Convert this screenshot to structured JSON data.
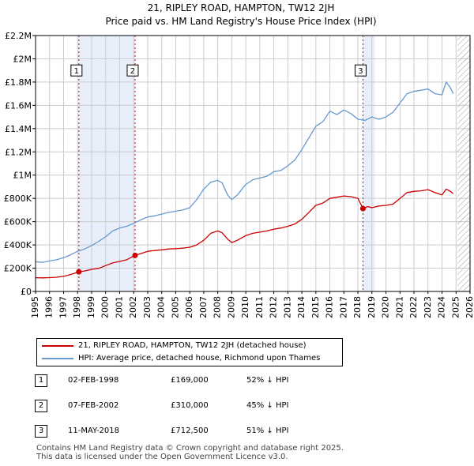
{
  "chart_data": {
    "type": "line",
    "title": "21, RIPLEY ROAD, HAMPTON, TW12 2JH",
    "subtitle": "Price paid vs. HM Land Registry's House Price Index (HPI)",
    "xlabel": "",
    "ylabel": "",
    "xlim": [
      1995,
      2026
    ],
    "ylim": [
      0,
      2200000
    ],
    "grid": true,
    "x_ticks": [
      1995,
      1996,
      1997,
      1998,
      1999,
      2000,
      2001,
      2002,
      2003,
      2004,
      2005,
      2006,
      2007,
      2008,
      2009,
      2010,
      2011,
      2012,
      2013,
      2014,
      2015,
      2016,
      2017,
      2018,
      2019,
      2020,
      2021,
      2022,
      2023,
      2024,
      2025,
      2026
    ],
    "y_ticks": [
      {
        "value": 0,
        "label": "£0"
      },
      {
        "value": 200000,
        "label": "£200K"
      },
      {
        "value": 400000,
        "label": "£400K"
      },
      {
        "value": 600000,
        "label": "£600K"
      },
      {
        "value": 800000,
        "label": "£800K"
      },
      {
        "value": 1000000,
        "label": "£1M"
      },
      {
        "value": 1200000,
        "label": "£1.2M"
      },
      {
        "value": 1400000,
        "label": "£1.4M"
      },
      {
        "value": 1600000,
        "label": "£1.6M"
      },
      {
        "value": 1800000,
        "label": "£1.8M"
      },
      {
        "value": 2000000,
        "label": "£2M"
      },
      {
        "value": 2200000,
        "label": "£2.2M"
      }
    ],
    "shaded_ranges": [
      [
        1998.09,
        2002.1
      ],
      [
        2018.36,
        2019.2
      ]
    ],
    "future_hatch_from": 2025.1,
    "series": [
      {
        "name": "21, RIPLEY ROAD, HAMPTON, TW12 2JH (detached house)",
        "color": "#cc0000",
        "points": [
          [
            1995.0,
            118000
          ],
          [
            1995.5,
            117000
          ],
          [
            1996.0,
            119000
          ],
          [
            1996.5,
            122000
          ],
          [
            1997.0,
            130000
          ],
          [
            1997.5,
            145000
          ],
          [
            1998.09,
            169000
          ],
          [
            1998.5,
            176000
          ],
          [
            1999.0,
            190000
          ],
          [
            1999.5,
            198000
          ],
          [
            2000.0,
            222000
          ],
          [
            2000.5,
            245000
          ],
          [
            2001.0,
            258000
          ],
          [
            2001.5,
            272000
          ],
          [
            2002.1,
            310000
          ],
          [
            2002.5,
            325000
          ],
          [
            2003.0,
            345000
          ],
          [
            2003.5,
            352000
          ],
          [
            2004.0,
            358000
          ],
          [
            2004.5,
            365000
          ],
          [
            2005.0,
            368000
          ],
          [
            2005.5,
            372000
          ],
          [
            2006.0,
            380000
          ],
          [
            2006.5,
            400000
          ],
          [
            2007.0,
            440000
          ],
          [
            2007.5,
            500000
          ],
          [
            2008.0,
            520000
          ],
          [
            2008.3,
            505000
          ],
          [
            2008.7,
            450000
          ],
          [
            2009.0,
            420000
          ],
          [
            2009.4,
            440000
          ],
          [
            2010.0,
            480000
          ],
          [
            2010.5,
            500000
          ],
          [
            2011.0,
            510000
          ],
          [
            2011.5,
            520000
          ],
          [
            2012.0,
            535000
          ],
          [
            2012.5,
            545000
          ],
          [
            2013.0,
            560000
          ],
          [
            2013.5,
            580000
          ],
          [
            2014.0,
            620000
          ],
          [
            2014.5,
            680000
          ],
          [
            2015.0,
            740000
          ],
          [
            2015.5,
            760000
          ],
          [
            2016.0,
            800000
          ],
          [
            2016.5,
            810000
          ],
          [
            2017.0,
            820000
          ],
          [
            2017.5,
            815000
          ],
          [
            2018.0,
            800000
          ],
          [
            2018.36,
            712500
          ],
          [
            2018.7,
            730000
          ],
          [
            2019.0,
            720000
          ],
          [
            2019.5,
            735000
          ],
          [
            2020.0,
            740000
          ],
          [
            2020.5,
            750000
          ],
          [
            2021.0,
            800000
          ],
          [
            2021.5,
            850000
          ],
          [
            2022.0,
            860000
          ],
          [
            2022.5,
            865000
          ],
          [
            2023.0,
            875000
          ],
          [
            2023.5,
            850000
          ],
          [
            2024.0,
            830000
          ],
          [
            2024.3,
            880000
          ],
          [
            2024.6,
            860000
          ],
          [
            2024.8,
            840000
          ]
        ]
      },
      {
        "name": "HPI: Average price, detached house, Richmond upon Thames",
        "color": "#6699cc",
        "points": [
          [
            1995.0,
            255000
          ],
          [
            1995.5,
            250000
          ],
          [
            1996.0,
            262000
          ],
          [
            1996.5,
            272000
          ],
          [
            1997.0,
            290000
          ],
          [
            1997.5,
            315000
          ],
          [
            1998.0,
            345000
          ],
          [
            1998.5,
            365000
          ],
          [
            1999.0,
            395000
          ],
          [
            1999.5,
            430000
          ],
          [
            2000.0,
            470000
          ],
          [
            2000.5,
            520000
          ],
          [
            2001.0,
            545000
          ],
          [
            2001.5,
            560000
          ],
          [
            2002.0,
            585000
          ],
          [
            2002.5,
            615000
          ],
          [
            2003.0,
            640000
          ],
          [
            2003.5,
            650000
          ],
          [
            2004.0,
            665000
          ],
          [
            2004.5,
            680000
          ],
          [
            2005.0,
            690000
          ],
          [
            2005.5,
            700000
          ],
          [
            2006.0,
            720000
          ],
          [
            2006.5,
            790000
          ],
          [
            2007.0,
            880000
          ],
          [
            2007.5,
            940000
          ],
          [
            2008.0,
            955000
          ],
          [
            2008.3,
            935000
          ],
          [
            2008.7,
            830000
          ],
          [
            2009.0,
            790000
          ],
          [
            2009.4,
            830000
          ],
          [
            2010.0,
            920000
          ],
          [
            2010.5,
            960000
          ],
          [
            2011.0,
            975000
          ],
          [
            2011.5,
            990000
          ],
          [
            2012.0,
            1030000
          ],
          [
            2012.5,
            1040000
          ],
          [
            2013.0,
            1080000
          ],
          [
            2013.5,
            1130000
          ],
          [
            2014.0,
            1220000
          ],
          [
            2014.5,
            1320000
          ],
          [
            2015.0,
            1420000
          ],
          [
            2015.5,
            1460000
          ],
          [
            2016.0,
            1550000
          ],
          [
            2016.5,
            1520000
          ],
          [
            2017.0,
            1560000
          ],
          [
            2017.5,
            1530000
          ],
          [
            2018.0,
            1480000
          ],
          [
            2018.5,
            1470000
          ],
          [
            2019.0,
            1500000
          ],
          [
            2019.5,
            1480000
          ],
          [
            2020.0,
            1500000
          ],
          [
            2020.5,
            1540000
          ],
          [
            2021.0,
            1620000
          ],
          [
            2021.5,
            1700000
          ],
          [
            2022.0,
            1720000
          ],
          [
            2022.5,
            1730000
          ],
          [
            2023.0,
            1740000
          ],
          [
            2023.5,
            1700000
          ],
          [
            2024.0,
            1690000
          ],
          [
            2024.3,
            1800000
          ],
          [
            2024.6,
            1750000
          ],
          [
            2024.8,
            1700000
          ]
        ]
      }
    ],
    "sales": [
      {
        "label": "1",
        "x": 1998.09,
        "price": 169000
      },
      {
        "label": "2",
        "x": 2002.1,
        "price": 310000
      },
      {
        "label": "3",
        "x": 2018.36,
        "price": 712500
      }
    ],
    "annotation_y": 1900000
  },
  "legend": {
    "property_label": "21, RIPLEY ROAD, HAMPTON, TW12 2JH (detached house)",
    "hpi_label": "HPI: Average price, detached house, Richmond upon Thames",
    "property_color": "#cc0000",
    "hpi_color": "#6699cc"
  },
  "sales_table": [
    {
      "num": "1",
      "date": "02-FEB-1998",
      "price": "£169,000",
      "hpi": "52% ↓ HPI"
    },
    {
      "num": "2",
      "date": "07-FEB-2002",
      "price": "£310,000",
      "hpi": "45% ↓ HPI"
    },
    {
      "num": "3",
      "date": "11-MAY-2018",
      "price": "£712,500",
      "hpi": "51% ↓ HPI"
    }
  ],
  "footer": {
    "line1": "Contains HM Land Registry data © Crown copyright and database right 2025.",
    "line2": "This data is licensed under the Open Government Licence v3.0."
  }
}
